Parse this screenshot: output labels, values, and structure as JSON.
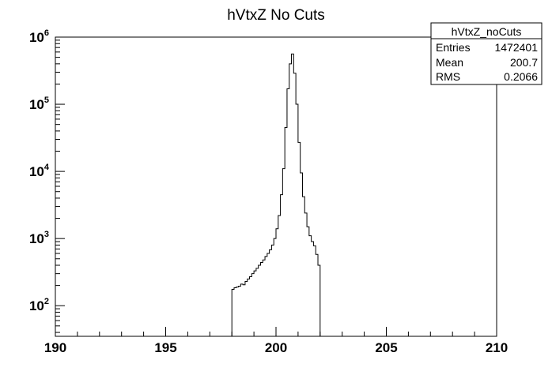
{
  "chart_data": {
    "type": "bar",
    "title": "hVtxZ No Cuts",
    "xlabel": "",
    "ylabel": "",
    "xlim": [
      190,
      210
    ],
    "ylim": [
      35,
      1000000
    ],
    "y_scale": "log",
    "grid": false,
    "x_ticks": [
      {
        "value": 190,
        "label": "190"
      },
      {
        "value": 195,
        "label": "195"
      },
      {
        "value": 200,
        "label": "200"
      },
      {
        "value": 205,
        "label": "205"
      },
      {
        "value": 210,
        "label": "210"
      }
    ],
    "y_ticks": [
      {
        "value": 100,
        "base": "10",
        "exp": "2"
      },
      {
        "value": 1000,
        "base": "10",
        "exp": "3"
      },
      {
        "value": 10000,
        "base": "10",
        "exp": "4"
      },
      {
        "value": 100000,
        "base": "10",
        "exp": "5"
      },
      {
        "value": 1000000,
        "base": "10",
        "exp": "6"
      }
    ],
    "bin_width": 0.1,
    "bins": [
      [
        198.0,
        175
      ],
      [
        198.1,
        185
      ],
      [
        198.2,
        190
      ],
      [
        198.3,
        195
      ],
      [
        198.4,
        210
      ],
      [
        198.5,
        205
      ],
      [
        198.6,
        230
      ],
      [
        198.7,
        250
      ],
      [
        198.8,
        270
      ],
      [
        198.9,
        300
      ],
      [
        199.0,
        330
      ],
      [
        199.1,
        360
      ],
      [
        199.2,
        400
      ],
      [
        199.3,
        440
      ],
      [
        199.4,
        480
      ],
      [
        199.5,
        540
      ],
      [
        199.6,
        600
      ],
      [
        199.7,
        680
      ],
      [
        199.8,
        800
      ],
      [
        199.9,
        1000
      ],
      [
        200.0,
        1400
      ],
      [
        200.1,
        2200
      ],
      [
        200.2,
        4500
      ],
      [
        200.3,
        11000
      ],
      [
        200.4,
        45000
      ],
      [
        200.5,
        170000
      ],
      [
        200.6,
        400000
      ],
      [
        200.7,
        560000
      ],
      [
        200.8,
        290000
      ],
      [
        200.9,
        100000
      ],
      [
        201.0,
        27000
      ],
      [
        201.1,
        9500
      ],
      [
        201.2,
        4200
      ],
      [
        201.3,
        2400
      ],
      [
        201.4,
        1500
      ],
      [
        201.5,
        1100
      ],
      [
        201.6,
        900
      ],
      [
        201.7,
        780
      ],
      [
        201.8,
        580
      ],
      [
        201.9,
        400
      ]
    ],
    "stats_box": {
      "name": "hVtxZ_noCuts",
      "rows": [
        {
          "label": "Entries",
          "value": "1472401"
        },
        {
          "label": "Mean",
          "value": "200.7"
        },
        {
          "label": "RMS",
          "value": "0.2066"
        }
      ]
    }
  }
}
